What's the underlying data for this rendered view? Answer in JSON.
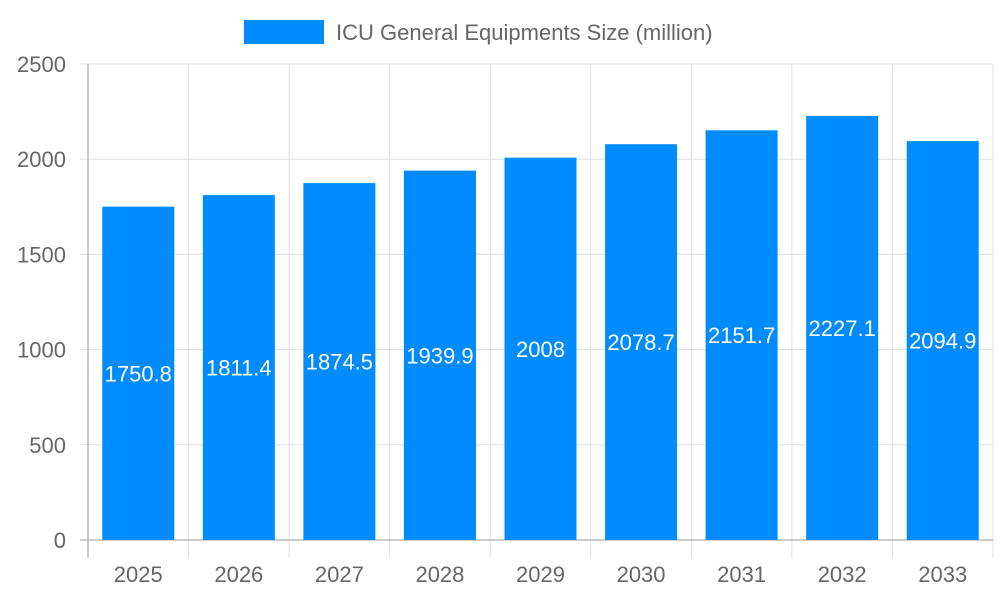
{
  "chart_data": {
    "type": "bar",
    "title": "",
    "xlabel": "",
    "ylabel": "",
    "categories": [
      "2025",
      "2026",
      "2027",
      "2028",
      "2029",
      "2030",
      "2031",
      "2032",
      "2033"
    ],
    "series": [
      {
        "name": "ICU General Equipments Size (million)",
        "values": [
          1750.8,
          1811.4,
          1874.5,
          1939.9,
          2008,
          2078.7,
          2151.7,
          2227.1,
          2094.9
        ],
        "color": "#008cff"
      }
    ],
    "ylim": [
      0,
      2500
    ],
    "yticks": [
      0,
      500,
      1000,
      1500,
      2000,
      2500
    ],
    "grid": true,
    "legend": "top-center",
    "data_labels": true
  }
}
